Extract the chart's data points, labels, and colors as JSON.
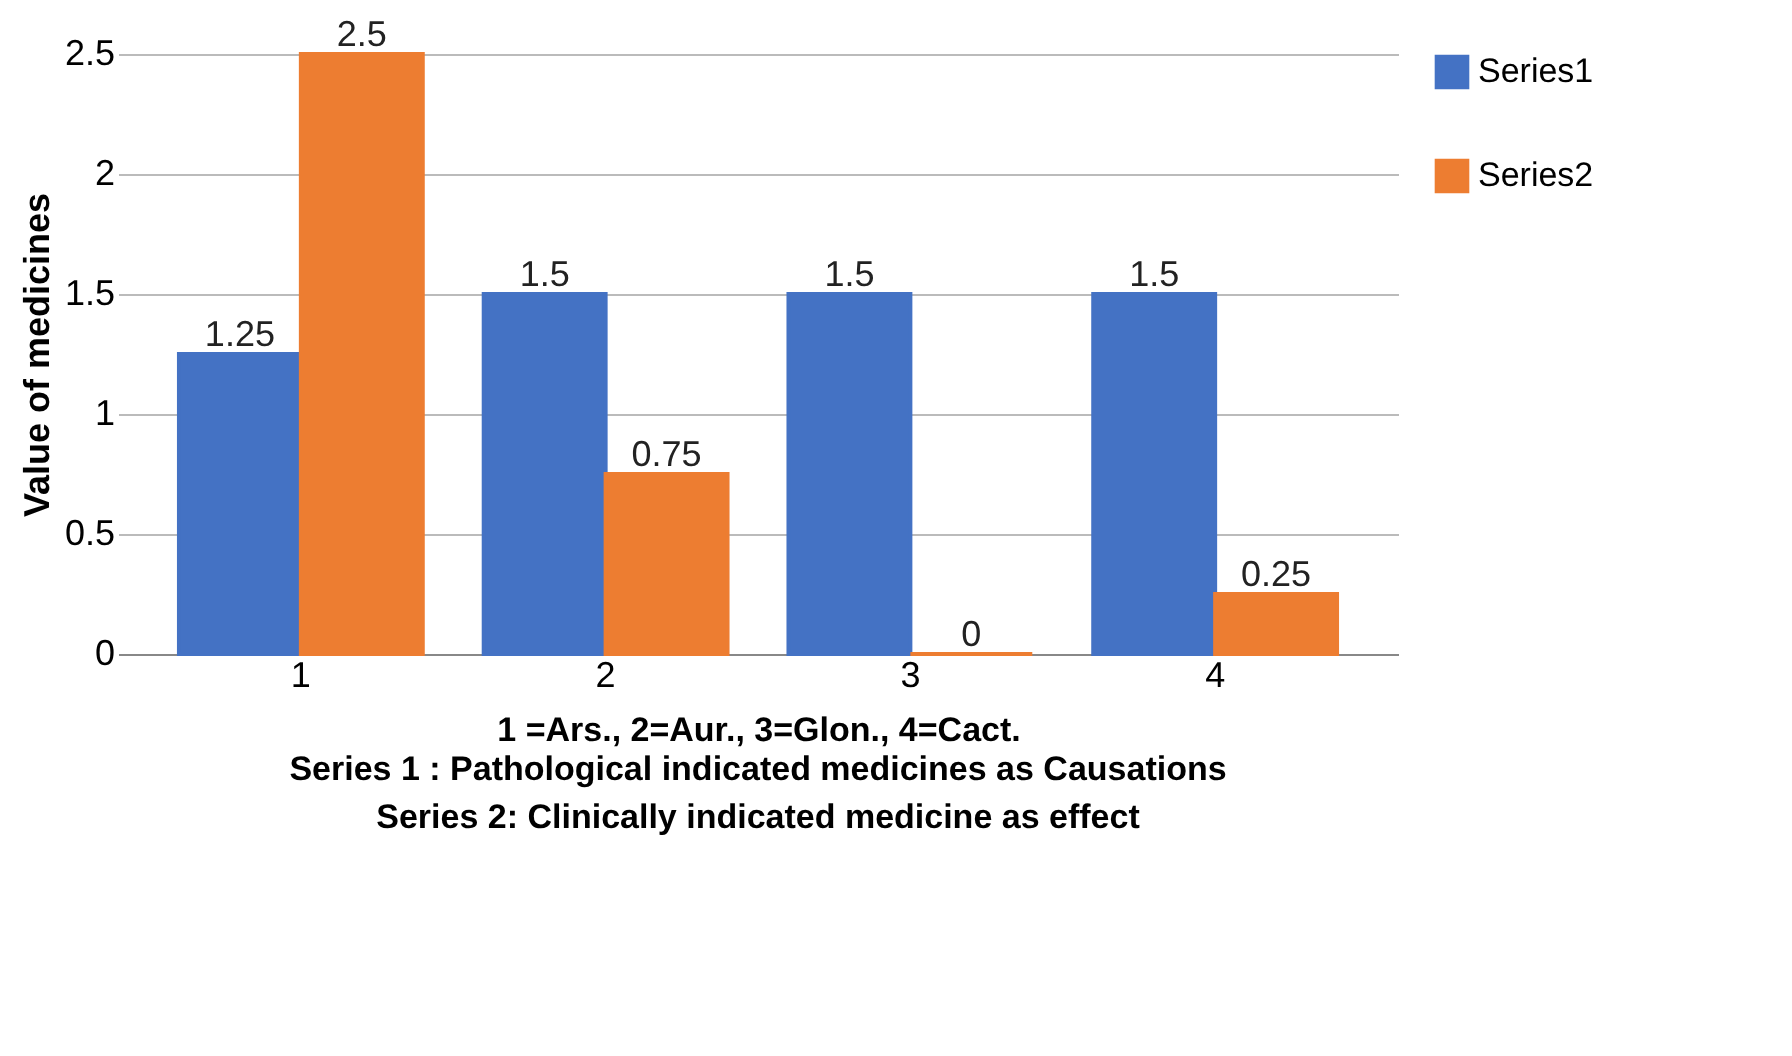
{
  "chart_data": {
    "type": "bar",
    "categories": [
      "1",
      "2",
      "3",
      "4"
    ],
    "series": [
      {
        "name": "Series1",
        "color": "#4472c4",
        "values": [
          1.25,
          1.5,
          1.5,
          1.5
        ]
      },
      {
        "name": "Series2",
        "color": "#ed7d31",
        "values": [
          2.5,
          0.75,
          0,
          0.25
        ]
      }
    ],
    "ylabel": "Value of medicines",
    "xlabel": "1 =Ars., 2=Aur., 3=Glon., 4=Cact.",
    "annotations": [
      "Series 1 : Pathological indicated medicines as Causations",
      "Series 2: Clinically indicated medicine as effect"
    ],
    "ylim": [
      0,
      2.5
    ],
    "yticks": [
      0,
      0.5,
      1,
      1.5,
      2,
      2.5
    ],
    "grid": "y",
    "legend": "right",
    "data_labels": true
  }
}
